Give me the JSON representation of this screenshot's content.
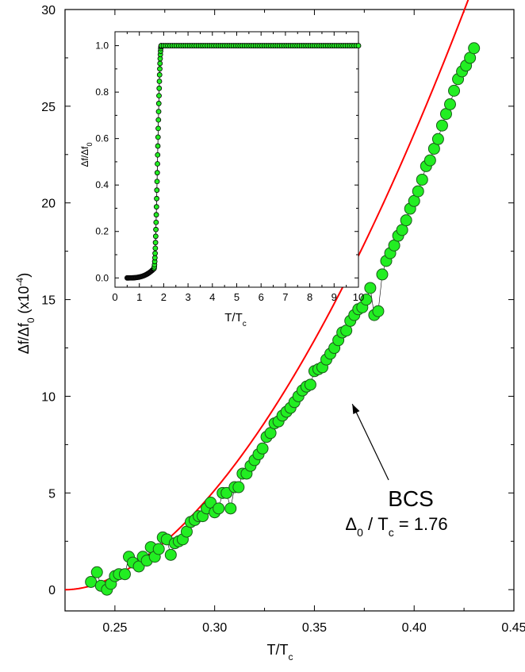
{
  "chart_data": [
    {
      "type": "scatter",
      "role": "main",
      "xlabel": {
        "base": "T/T",
        "sub": "c"
      },
      "ylabel": {
        "base": "Δf/Δf",
        "sub": "0",
        "rest": " (x10",
        "sup": "-4",
        "end": ")"
      },
      "xlim": [
        0.225,
        0.45
      ],
      "ylim": [
        -1.1,
        30
      ],
      "xticks": [
        "0.25",
        "0.30",
        "0.35",
        "0.40",
        "0.45"
      ],
      "yticks": [
        "0",
        "5",
        "10",
        "15",
        "20",
        "25",
        "30"
      ],
      "xtick_values": [
        0.25,
        0.3,
        0.35,
        0.4,
        0.45
      ],
      "ytick_values": [
        0,
        5,
        10,
        15,
        20,
        25,
        30
      ],
      "annotation": {
        "title": "BCS",
        "line_base": "Δ",
        "line_sub": "0",
        "line_mid": " / T",
        "line_sub2": "c",
        "line_end": " = 1.76",
        "arrow_to": [
          0.369,
          9.6
        ]
      },
      "fit_series": {
        "color": "#ff0000",
        "form": "a(T-T0)^p",
        "a": 530,
        "T0": 0.226,
        "p": 1.78
      },
      "marker_color": "#22ee22",
      "points": [
        [
          0.238,
          0.4
        ],
        [
          0.241,
          0.9
        ],
        [
          0.243,
          0.2
        ],
        [
          0.246,
          0.0
        ],
        [
          0.248,
          0.3
        ],
        [
          0.25,
          0.7
        ],
        [
          0.252,
          0.8
        ],
        [
          0.255,
          0.8
        ],
        [
          0.257,
          1.7
        ],
        [
          0.259,
          1.4
        ],
        [
          0.262,
          1.2
        ],
        [
          0.264,
          1.7
        ],
        [
          0.266,
          1.5
        ],
        [
          0.268,
          2.2
        ],
        [
          0.27,
          1.7
        ],
        [
          0.272,
          2.1
        ],
        [
          0.274,
          2.7
        ],
        [
          0.276,
          2.6
        ],
        [
          0.278,
          1.8
        ],
        [
          0.28,
          2.4
        ],
        [
          0.282,
          2.5
        ],
        [
          0.284,
          2.6
        ],
        [
          0.286,
          3.0
        ],
        [
          0.288,
          3.5
        ],
        [
          0.29,
          3.6
        ],
        [
          0.292,
          3.8
        ],
        [
          0.294,
          3.8
        ],
        [
          0.296,
          4.2
        ],
        [
          0.298,
          4.5
        ],
        [
          0.3,
          4.0
        ],
        [
          0.302,
          4.2
        ],
        [
          0.304,
          5.0
        ],
        [
          0.306,
          5.0
        ],
        [
          0.308,
          4.2
        ],
        [
          0.31,
          5.3
        ],
        [
          0.312,
          5.3
        ],
        [
          0.314,
          6.0
        ],
        [
          0.316,
          6.0
        ],
        [
          0.318,
          6.4
        ],
        [
          0.32,
          6.7
        ],
        [
          0.322,
          7.0
        ],
        [
          0.324,
          7.3
        ],
        [
          0.326,
          7.9
        ],
        [
          0.328,
          8.1
        ],
        [
          0.33,
          8.6
        ],
        [
          0.332,
          8.7
        ],
        [
          0.334,
          9.0
        ],
        [
          0.336,
          9.2
        ],
        [
          0.338,
          9.4
        ],
        [
          0.34,
          9.7
        ],
        [
          0.342,
          10.0
        ],
        [
          0.344,
          10.3
        ],
        [
          0.346,
          10.5
        ],
        [
          0.348,
          10.6
        ],
        [
          0.35,
          11.3
        ],
        [
          0.352,
          11.4
        ],
        [
          0.354,
          11.5
        ],
        [
          0.356,
          11.9
        ],
        [
          0.358,
          12.2
        ],
        [
          0.36,
          12.5
        ],
        [
          0.362,
          12.9
        ],
        [
          0.364,
          13.3
        ],
        [
          0.366,
          13.4
        ],
        [
          0.368,
          13.9
        ],
        [
          0.37,
          14.2
        ],
        [
          0.372,
          14.5
        ],
        [
          0.374,
          14.6
        ],
        [
          0.376,
          15.0
        ],
        [
          0.378,
          15.6
        ],
        [
          0.38,
          14.2
        ],
        [
          0.382,
          14.4
        ],
        [
          0.384,
          16.3
        ],
        [
          0.386,
          17.0
        ],
        [
          0.388,
          17.4
        ],
        [
          0.39,
          17.8
        ],
        [
          0.392,
          18.3
        ],
        [
          0.394,
          18.6
        ],
        [
          0.396,
          19.1
        ],
        [
          0.398,
          19.7
        ],
        [
          0.4,
          20.1
        ],
        [
          0.402,
          20.6
        ],
        [
          0.404,
          21.2
        ],
        [
          0.406,
          21.9
        ],
        [
          0.408,
          22.2
        ],
        [
          0.41,
          22.8
        ],
        [
          0.412,
          23.3
        ],
        [
          0.414,
          24.0
        ],
        [
          0.416,
          24.6
        ],
        [
          0.418,
          25.1
        ],
        [
          0.42,
          25.8
        ],
        [
          0.422,
          26.4
        ],
        [
          0.424,
          26.8
        ],
        [
          0.426,
          27.1
        ],
        [
          0.428,
          27.5
        ],
        [
          0.43,
          28.0
        ]
      ]
    },
    {
      "type": "scatter",
      "role": "inset",
      "xlabel": {
        "base": "T/T",
        "sub": "c"
      },
      "ylabel": {
        "base": "Δf/Δf",
        "sub": "0"
      },
      "xlim": [
        0,
        10
      ],
      "ylim": [
        -0.04,
        1.06
      ],
      "xticks": [
        "0",
        "1",
        "2",
        "3",
        "4",
        "5",
        "6",
        "7",
        "8",
        "9",
        "10"
      ],
      "yticks": [
        "0.0",
        "0.2",
        "0.4",
        "0.6",
        "0.8",
        "1.0"
      ],
      "xtick_values": [
        0,
        1,
        2,
        3,
        4,
        5,
        6,
        7,
        8,
        9,
        10
      ],
      "ytick_values": [
        0,
        0.2,
        0.4,
        0.6,
        0.8,
        1.0
      ],
      "curve": {
        "low_end": [
          0.5,
          0.0
        ],
        "knee": [
          1.6,
          0.04
        ],
        "transition_mid": [
          1.75,
          0.5
        ],
        "saturation_start": [
          1.9,
          1.0
        ],
        "high_end": [
          10,
          1.0
        ]
      },
      "marker_color": "#22ee22"
    }
  ]
}
